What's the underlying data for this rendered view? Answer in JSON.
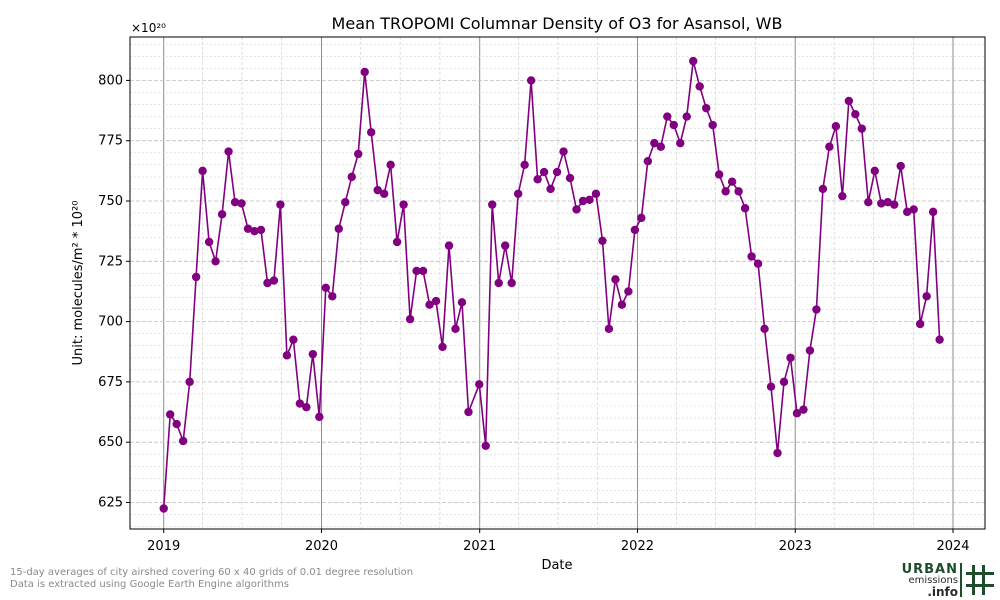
{
  "chart_data": {
    "type": "line",
    "title": "Mean TROPOMI Columnar Density of O3 for Asansol, WB",
    "xlabel": "Date",
    "ylabel": "Unit: molecules/m² * 10²⁰",
    "y_multiplier": "×10²⁰",
    "xlim": [
      "2018-10-15",
      "2024-03-15"
    ],
    "ylim": [
      614,
      818
    ],
    "y_ticks": [
      625,
      650,
      675,
      700,
      725,
      750,
      775,
      800
    ],
    "x_ticks": [
      {
        "date": "2019-01-01",
        "label": "2019"
      },
      {
        "date": "2020-01-01",
        "label": "2020"
      },
      {
        "date": "2021-01-01",
        "label": "2021"
      },
      {
        "date": "2022-01-01",
        "label": "2022"
      },
      {
        "date": "2023-01-01",
        "label": "2023"
      },
      {
        "date": "2024-01-01",
        "label": "2024"
      }
    ],
    "grid": true,
    "color": "#800080",
    "series": [
      {
        "points": [
          [
            "2019-01-01",
            622.5
          ],
          [
            "2019-01-16",
            661.5
          ],
          [
            "2019-01-31",
            657.5
          ],
          [
            "2019-02-15",
            650.5
          ],
          [
            "2019-03-02",
            675
          ],
          [
            "2019-03-17",
            718.5
          ],
          [
            "2019-04-01",
            762.5
          ],
          [
            "2019-04-16",
            733
          ],
          [
            "2019-05-01",
            725
          ],
          [
            "2019-05-16",
            744.5
          ],
          [
            "2019-05-31",
            770.5
          ],
          [
            "2019-06-15",
            749.5
          ],
          [
            "2019-06-30",
            749
          ],
          [
            "2019-07-15",
            738.5
          ],
          [
            "2019-07-30",
            737.5
          ],
          [
            "2019-08-14",
            738
          ],
          [
            "2019-08-29",
            716
          ],
          [
            "2019-09-13",
            717
          ],
          [
            "2019-09-28",
            748.5
          ],
          [
            "2019-10-13",
            686
          ],
          [
            "2019-10-28",
            692.5
          ],
          [
            "2019-11-12",
            666
          ],
          [
            "2019-11-27",
            664.5
          ],
          [
            "2019-12-12",
            686.5
          ],
          [
            "2019-12-27",
            660.5
          ],
          [
            "2020-01-11",
            714
          ],
          [
            "2020-01-26",
            710.5
          ],
          [
            "2020-02-10",
            738.5
          ],
          [
            "2020-02-25",
            749.5
          ],
          [
            "2020-03-11",
            760
          ],
          [
            "2020-03-26",
            769.5
          ],
          [
            "2020-04-10",
            803.5
          ],
          [
            "2020-04-25",
            778.5
          ],
          [
            "2020-05-10",
            754.5
          ],
          [
            "2020-05-25",
            753
          ],
          [
            "2020-06-09",
            765
          ],
          [
            "2020-06-24",
            733
          ],
          [
            "2020-07-09",
            748.5
          ],
          [
            "2020-07-24",
            701
          ],
          [
            "2020-08-08",
            721
          ],
          [
            "2020-08-23",
            721
          ],
          [
            "2020-09-07",
            707
          ],
          [
            "2020-09-22",
            708.5
          ],
          [
            "2020-10-07",
            689.5
          ],
          [
            "2020-10-22",
            731.5
          ],
          [
            "2020-11-06",
            697
          ],
          [
            "2020-11-21",
            708
          ],
          [
            "2020-12-06",
            662.5
          ],
          [
            "2020-12-31",
            674
          ],
          [
            "2021-01-15",
            648.5
          ],
          [
            "2021-01-30",
            748.5
          ],
          [
            "2021-02-14",
            716
          ],
          [
            "2021-03-01",
            731.5
          ],
          [
            "2021-03-16",
            716
          ],
          [
            "2021-03-31",
            753
          ],
          [
            "2021-04-15",
            765
          ],
          [
            "2021-04-30",
            800
          ],
          [
            "2021-05-15",
            759
          ],
          [
            "2021-05-30",
            762
          ],
          [
            "2021-06-14",
            755
          ],
          [
            "2021-06-29",
            762
          ],
          [
            "2021-07-14",
            770.5
          ],
          [
            "2021-07-29",
            759.5
          ],
          [
            "2021-08-13",
            746.5
          ],
          [
            "2021-08-28",
            750
          ],
          [
            "2021-09-12",
            750.5
          ],
          [
            "2021-09-27",
            753
          ],
          [
            "2021-10-12",
            733.5
          ],
          [
            "2021-10-27",
            697
          ],
          [
            "2021-11-11",
            717.5
          ],
          [
            "2021-11-26",
            707
          ],
          [
            "2021-12-11",
            712.5
          ],
          [
            "2021-12-26",
            738
          ],
          [
            "2022-01-10",
            743
          ],
          [
            "2022-01-25",
            766.5
          ],
          [
            "2022-02-09",
            774
          ],
          [
            "2022-02-24",
            772.5
          ],
          [
            "2022-03-11",
            785
          ],
          [
            "2022-03-26",
            781.5
          ],
          [
            "2022-04-10",
            774
          ],
          [
            "2022-04-25",
            785
          ],
          [
            "2022-05-10",
            808
          ],
          [
            "2022-05-25",
            797.5
          ],
          [
            "2022-06-09",
            788.5
          ],
          [
            "2022-06-24",
            781.5
          ],
          [
            "2022-07-09",
            761
          ],
          [
            "2022-07-24",
            754
          ],
          [
            "2022-08-08",
            758
          ],
          [
            "2022-08-23",
            754
          ],
          [
            "2022-09-07",
            747
          ],
          [
            "2022-09-22",
            727
          ],
          [
            "2022-10-07",
            724
          ],
          [
            "2022-10-22",
            697
          ],
          [
            "2022-11-06",
            673
          ],
          [
            "2022-11-21",
            645.5
          ],
          [
            "2022-12-06",
            675
          ],
          [
            "2022-12-21",
            685
          ],
          [
            "2023-01-05",
            662
          ],
          [
            "2023-01-20",
            663.5
          ],
          [
            "2023-02-04",
            688
          ],
          [
            "2023-02-19",
            705
          ],
          [
            "2023-03-06",
            755
          ],
          [
            "2023-03-21",
            772.5
          ],
          [
            "2023-04-05",
            781
          ],
          [
            "2023-04-20",
            752
          ],
          [
            "2023-05-05",
            791.5
          ],
          [
            "2023-05-20",
            786
          ],
          [
            "2023-06-04",
            780
          ],
          [
            "2023-06-19",
            749.5
          ],
          [
            "2023-07-04",
            762.5
          ],
          [
            "2023-07-19",
            749
          ],
          [
            "2023-08-03",
            749.5
          ],
          [
            "2023-08-18",
            748.5
          ],
          [
            "2023-09-02",
            764.5
          ],
          [
            "2023-09-17",
            745.5
          ],
          [
            "2023-10-02",
            746.5
          ],
          [
            "2023-10-17",
            699
          ],
          [
            "2023-11-01",
            710.5
          ],
          [
            "2023-11-16",
            745.5
          ],
          [
            "2023-12-01",
            692.5
          ]
        ]
      }
    ]
  },
  "footnote": {
    "line1": "15-day averages of city airshed covering 60 x 40 grids of 0.01 degree resolution",
    "line2": "Data is extracted using Google Earth Engine algorithms"
  },
  "logo": {
    "word1": "URBAN",
    "word2": "emissions",
    "word3": ".info",
    "color": "#1e4d2b"
  }
}
